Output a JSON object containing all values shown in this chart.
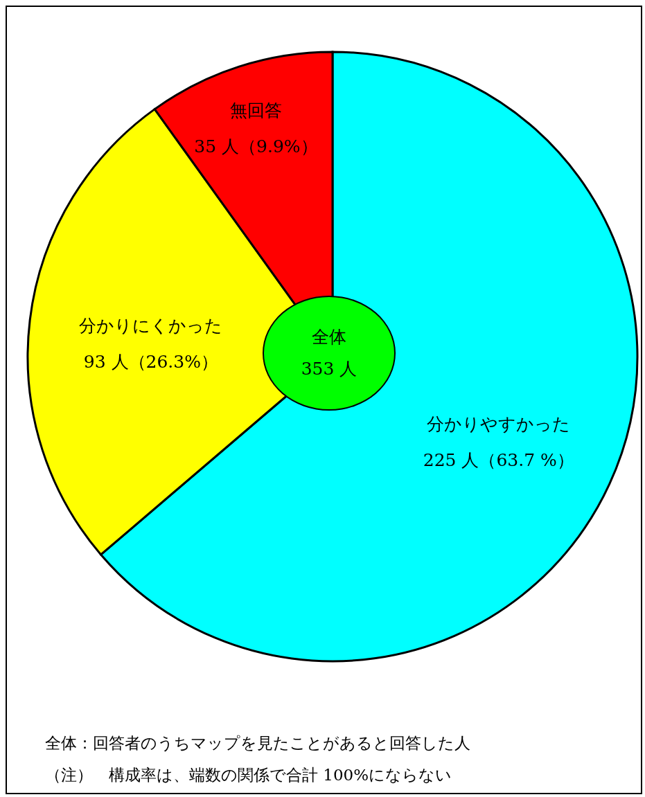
{
  "chart_data": {
    "type": "pie",
    "categories": [
      "分かりやすかった",
      "分かりにくかった",
      "無回答"
    ],
    "values": [
      225,
      93,
      35
    ],
    "value_labels": [
      "225 人（63.7 %）",
      "93 人（26.3%）",
      "35 人（9.9%）"
    ],
    "colors": [
      "#00ffff",
      "#ffff00",
      "#ff0000"
    ],
    "annotations": [
      "全体\n353 人",
      "全体：回答者のうちマップを見たことがあると回答した人",
      "（注）　構成率は、端数の関係で合計 100%にならない"
    ],
    "legend": false
  }
}
